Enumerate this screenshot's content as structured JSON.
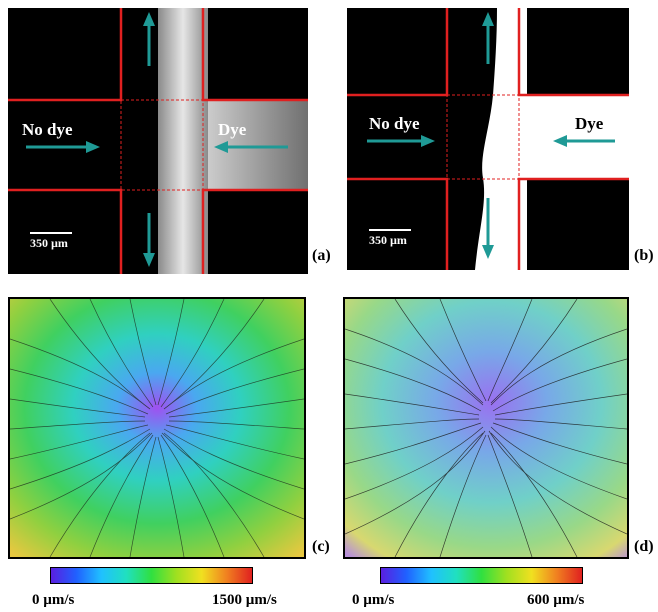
{
  "panel_a": {
    "label": "(a)",
    "left_text": "No dye",
    "right_text": "Dye",
    "scalebar": "350 µm"
  },
  "panel_b": {
    "label": "(b)",
    "left_text": "No dye",
    "right_text": "Dye",
    "scalebar": "350 µm"
  },
  "panel_c": {
    "label": "(c)",
    "colorbar_min": "0 µm/s",
    "colorbar_max": "1500 µm/s"
  },
  "panel_d": {
    "label": "(d)",
    "colorbar_min": "0 µm/s",
    "colorbar_max": "600 µm/s"
  },
  "colors": {
    "arrow": "#1f9a96",
    "channel_wall": "#e02020",
    "dye": "#d8d8d8"
  }
}
